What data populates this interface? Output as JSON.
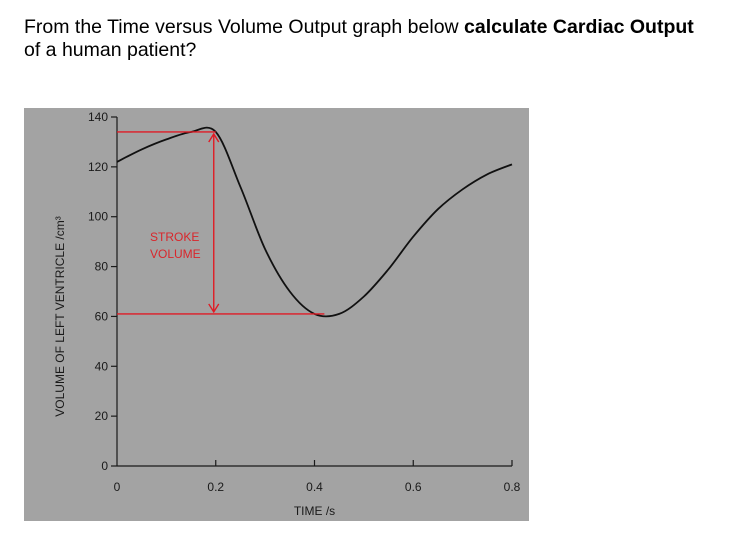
{
  "question": {
    "part1": "From the Time versus Volume Output graph below ",
    "bold": "calculate Cardiac Output",
    "part2": "of a human patient?"
  },
  "colors": {
    "plot_background": "#a3a3a3",
    "curve": "#111111",
    "annotation": "#e01b24"
  },
  "chart_data": {
    "type": "line",
    "title": "",
    "xlabel": "TIME /s",
    "ylabel": "VOLUME OF LEFT VENTRICLE /cm³",
    "xlim": [
      0,
      0.8
    ],
    "ylim": [
      0,
      140
    ],
    "x_ticks": [
      0,
      0.2,
      0.4,
      0.6,
      0.8
    ],
    "x_tick_labels": [
      "0",
      "0.2",
      "0.4",
      "0.6",
      "0.8"
    ],
    "y_ticks": [
      0,
      20,
      40,
      60,
      80,
      100,
      120,
      140
    ],
    "y_tick_labels": [
      "0",
      "20",
      "40",
      "60",
      "80",
      "100",
      "120",
      "140"
    ],
    "grid": false,
    "series": [
      {
        "x": [
          0.0,
          0.05,
          0.1,
          0.15,
          0.2,
          0.25,
          0.3,
          0.35,
          0.4,
          0.45,
          0.5,
          0.55,
          0.6,
          0.65,
          0.7,
          0.75,
          0.8
        ],
        "y": [
          122,
          127,
          131,
          134,
          134,
          112,
          87,
          70,
          61,
          61,
          68,
          79,
          92,
          103,
          111,
          117,
          121
        ]
      }
    ],
    "annotations": {
      "stroke_volume_label": [
        "STROKE",
        "VOLUME"
      ],
      "max_volume": 134,
      "min_volume": 61,
      "max_time": 0.2,
      "min_time": 0.42
    }
  }
}
